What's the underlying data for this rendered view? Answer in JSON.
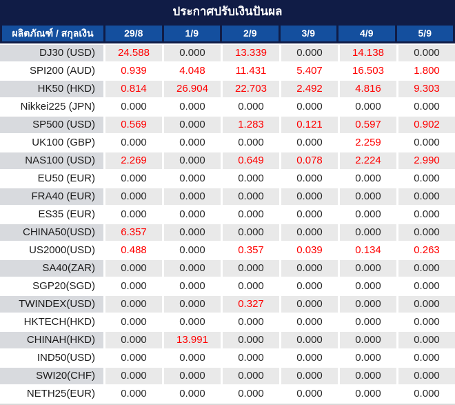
{
  "title": "ประกาศปรับเงินปันผล",
  "colors": {
    "title_navy": "#101c46",
    "header_blue": "#144f9e",
    "stripe_label_gray": "#d8dade",
    "stripe_value_gray": "#e9e9e9",
    "positive_value_red": "#ff0000",
    "zero_value_text": "#2a2a2a"
  },
  "chart_data": {
    "type": "table",
    "title": "ประกาศปรับเงินปันผล",
    "corner_header": "ผลิตภัณฑ์ / สกุลเงิน",
    "columns": [
      "29/8",
      "1/9",
      "2/9",
      "3/9",
      "4/9",
      "5/9"
    ],
    "rows": [
      {
        "product": "DJ30 (USD)",
        "values": [
          "24.588",
          "0.000",
          "13.339",
          "0.000",
          "14.138",
          "0.000"
        ]
      },
      {
        "product": "SPI200 (AUD)",
        "values": [
          "0.939",
          "4.048",
          "11.431",
          "5.407",
          "16.503",
          "1.800"
        ]
      },
      {
        "product": "HK50 (HKD)",
        "values": [
          "0.814",
          "26.904",
          "22.703",
          "2.492",
          "4.816",
          "9.303"
        ]
      },
      {
        "product": "Nikkei225 (JPN)",
        "values": [
          "0.000",
          "0.000",
          "0.000",
          "0.000",
          "0.000",
          "0.000"
        ]
      },
      {
        "product": "SP500 (USD)",
        "values": [
          "0.569",
          "0.000",
          "1.283",
          "0.121",
          "0.597",
          "0.902"
        ]
      },
      {
        "product": "UK100 (GBP)",
        "values": [
          "0.000",
          "0.000",
          "0.000",
          "0.000",
          "2.259",
          "0.000"
        ]
      },
      {
        "product": "NAS100 (USD)",
        "values": [
          "2.269",
          "0.000",
          "0.649",
          "0.078",
          "2.224",
          "2.990"
        ]
      },
      {
        "product": "EU50 (EUR)",
        "values": [
          "0.000",
          "0.000",
          "0.000",
          "0.000",
          "0.000",
          "0.000"
        ]
      },
      {
        "product": "FRA40 (EUR)",
        "values": [
          "0.000",
          "0.000",
          "0.000",
          "0.000",
          "0.000",
          "0.000"
        ]
      },
      {
        "product": "ES35 (EUR)",
        "values": [
          "0.000",
          "0.000",
          "0.000",
          "0.000",
          "0.000",
          "0.000"
        ]
      },
      {
        "product": "CHINA50(USD)",
        "values": [
          "6.357",
          "0.000",
          "0.000",
          "0.000",
          "0.000",
          "0.000"
        ]
      },
      {
        "product": "US2000(USD)",
        "values": [
          "0.488",
          "0.000",
          "0.357",
          "0.039",
          "0.134",
          "0.263"
        ]
      },
      {
        "product": "SA40(ZAR)",
        "values": [
          "0.000",
          "0.000",
          "0.000",
          "0.000",
          "0.000",
          "0.000"
        ]
      },
      {
        "product": "SGP20(SGD)",
        "values": [
          "0.000",
          "0.000",
          "0.000",
          "0.000",
          "0.000",
          "0.000"
        ]
      },
      {
        "product": "TWINDEX(USD)",
        "values": [
          "0.000",
          "0.000",
          "0.327",
          "0.000",
          "0.000",
          "0.000"
        ]
      },
      {
        "product": "HKTECH(HKD)",
        "values": [
          "0.000",
          "0.000",
          "0.000",
          "0.000",
          "0.000",
          "0.000"
        ]
      },
      {
        "product": "CHINAH(HKD)",
        "values": [
          "0.000",
          "13.991",
          "0.000",
          "0.000",
          "0.000",
          "0.000"
        ]
      },
      {
        "product": "IND50(USD)",
        "values": [
          "0.000",
          "0.000",
          "0.000",
          "0.000",
          "0.000",
          "0.000"
        ]
      },
      {
        "product": "SWI20(CHF)",
        "values": [
          "0.000",
          "0.000",
          "0.000",
          "0.000",
          "0.000",
          "0.000"
        ]
      },
      {
        "product": "NETH25(EUR)",
        "values": [
          "0.000",
          "0.000",
          "0.000",
          "0.000",
          "0.000",
          "0.000"
        ]
      }
    ]
  }
}
